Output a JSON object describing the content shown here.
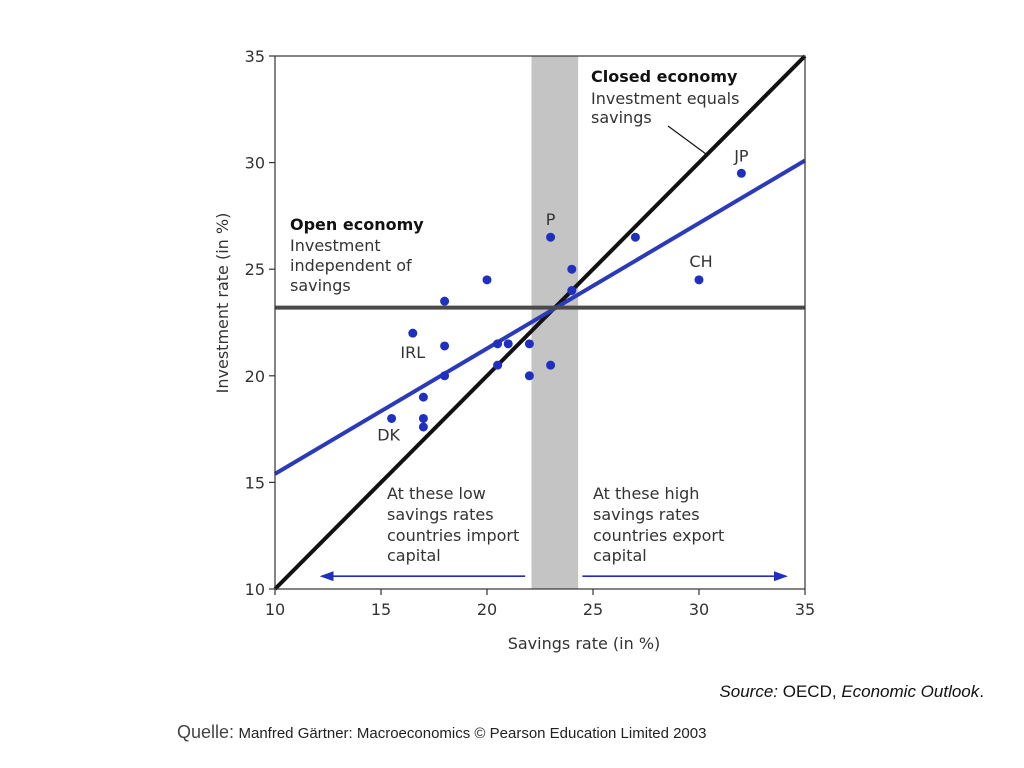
{
  "chart_data": {
    "type": "scatter",
    "xlabel": "Savings rate (in %)",
    "ylabel": "Investment rate (in %)",
    "xlim": [
      10,
      35
    ],
    "ylim": [
      10,
      35
    ],
    "x_ticks": [
      10,
      15,
      20,
      25,
      30,
      35
    ],
    "y_ticks": [
      10,
      15,
      20,
      25,
      30,
      35
    ],
    "y_tick_labels": [
      "10",
      "15",
      "20",
      "25",
      "30",
      "35"
    ],
    "x_tick_labels": [
      "10",
      "15",
      "20",
      "25",
      "30",
      "35"
    ],
    "grid": false,
    "points": [
      {
        "x": 15.5,
        "y": 18.0,
        "label": "DK"
      },
      {
        "x": 16.5,
        "y": 22.0,
        "label": "IRL"
      },
      {
        "x": 17.0,
        "y": 19.0,
        "label": ""
      },
      {
        "x": 17.0,
        "y": 18.0,
        "label": ""
      },
      {
        "x": 17.0,
        "y": 17.6,
        "label": ""
      },
      {
        "x": 18.0,
        "y": 23.5,
        "label": ""
      },
      {
        "x": 18.0,
        "y": 21.4,
        "label": ""
      },
      {
        "x": 18.0,
        "y": 20.0,
        "label": ""
      },
      {
        "x": 20.0,
        "y": 24.5,
        "label": ""
      },
      {
        "x": 20.5,
        "y": 21.5,
        "label": ""
      },
      {
        "x": 20.5,
        "y": 20.5,
        "label": ""
      },
      {
        "x": 21.0,
        "y": 21.5,
        "label": ""
      },
      {
        "x": 22.0,
        "y": 21.5,
        "label": ""
      },
      {
        "x": 22.0,
        "y": 20.0,
        "label": ""
      },
      {
        "x": 23.0,
        "y": 26.5,
        "label": "P"
      },
      {
        "x": 23.0,
        "y": 20.5,
        "label": ""
      },
      {
        "x": 24.0,
        "y": 25.0,
        "label": ""
      },
      {
        "x": 24.0,
        "y": 24.0,
        "label": ""
      },
      {
        "x": 27.0,
        "y": 26.5,
        "label": ""
      },
      {
        "x": 30.0,
        "y": 24.5,
        "label": "CH"
      },
      {
        "x": 32.0,
        "y": 29.5,
        "label": "JP"
      }
    ],
    "lines": [
      {
        "name": "Closed economy",
        "from": [
          10,
          10
        ],
        "to": [
          35,
          35
        ],
        "color": "#111111"
      },
      {
        "name": "Regression",
        "from": [
          10,
          15.4
        ],
        "to": [
          35,
          30.1
        ],
        "color": "#2a3ab8"
      },
      {
        "name": "Open economy",
        "from": [
          10,
          23.2
        ],
        "to": [
          35,
          23.2
        ],
        "color": "#4a4a4a"
      }
    ],
    "shaded_band": {
      "x_from": 22.1,
      "x_to": 24.3,
      "color": "#c4c4c4"
    },
    "annotations": {
      "closed_title": "Closed economy",
      "closed_l1": "Investment equals",
      "closed_l2": "savings",
      "open_title": "Open economy",
      "open_l1": "Investment",
      "open_l2": "independent of",
      "open_l3": "savings",
      "low_l1": "At these low",
      "low_l2": "savings rates",
      "low_l3": "countries import",
      "low_l4": "capital",
      "high_l1": "At these high",
      "high_l2": "savings rates",
      "high_l3": "countries export",
      "high_l4": "capital"
    },
    "arrows": [
      {
        "direction": "left",
        "from_x": 21.8,
        "to_x": 12.2,
        "y": 10.6
      },
      {
        "direction": "right",
        "from_x": 24.5,
        "to_x": 34.1,
        "y": 10.6
      }
    ],
    "colors": {
      "point": "#1f2fbf",
      "arrow": "#1f2fbf"
    }
  },
  "source": {
    "label": "Source:",
    "org": "OECD, ",
    "publication": "Economic Outlook",
    "end": "."
  },
  "credit": {
    "prefix": "Quelle:",
    "text": "Manfred Gärtner: Macroeconomics © Pearson Education Limited 2003"
  }
}
